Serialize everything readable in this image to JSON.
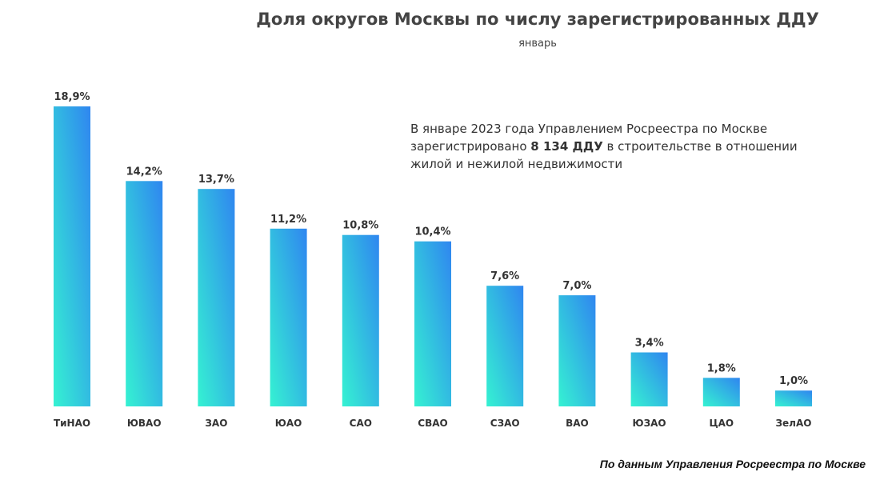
{
  "chart_data": {
    "type": "bar",
    "title": "Доля округов Москвы по числу зарегистрированных ДДУ",
    "subtitle": "январь",
    "categories": [
      "ТиНАО",
      "ЮВАО",
      "ЗАО",
      "ЮАО",
      "САО",
      "СВАО",
      "СЗАО",
      "ВАО",
      "ЮЗАО",
      "ЦАО",
      "ЗелАО"
    ],
    "values": [
      18.9,
      14.2,
      13.7,
      11.2,
      10.8,
      10.4,
      7.6,
      7.0,
      3.4,
      1.8,
      1.0
    ],
    "value_labels": [
      "18,9%",
      "14,2%",
      "13,7%",
      "11,2%",
      "10,8%",
      "10,4%",
      "7,6%",
      "7,0%",
      "3,4%",
      "1,8%",
      "1,0%"
    ],
    "ylim": [
      0,
      18.9
    ],
    "xlabel": "",
    "ylabel": "",
    "grid": false,
    "unit": "%",
    "colors": {
      "bar_top": "#2f86f0",
      "bar_bottom": "#35f2d2"
    }
  },
  "annotation": {
    "part1": "В январе 2023 года Управлением Росреестра по Москве зарегистрировано ",
    "bold": "8 134 ДДУ",
    "part2": " в строительстве в отношении жилой и нежилой недвижимости"
  },
  "source": "По данным Управления Росреестра по Москве"
}
